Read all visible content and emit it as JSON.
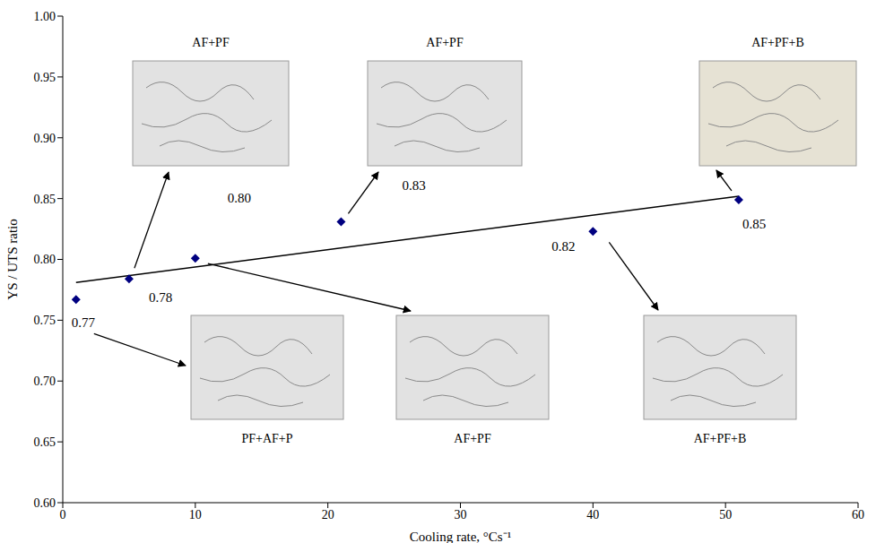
{
  "chart_data": {
    "type": "scatter",
    "x_label": "Cooling rate, °Cs⁻¹",
    "y_label": "YS / UTS ratio",
    "x": [
      1,
      5,
      10,
      21,
      40,
      51
    ],
    "values": [
      0.767,
      0.784,
      0.801,
      0.831,
      0.823,
      0.849
    ],
    "value_labels": [
      "0.77",
      "0.78",
      "0.80",
      "0.83",
      "0.82",
      "0.85"
    ],
    "data_labels": true,
    "phases": [
      "PF+AF+P",
      "AF+PF",
      "AF+PF",
      "AF+PF",
      "AF+PF+B",
      "AF+PF+B"
    ],
    "color": "#000080",
    "marker": "diamond",
    "trendline": {
      "x": [
        1,
        51
      ],
      "values": [
        0.781,
        0.852
      ],
      "color": "#000000",
      "line_style": "solid"
    },
    "xlim": [
      0,
      60
    ],
    "xticks": [
      0,
      10,
      20,
      30,
      40,
      50,
      60
    ],
    "ylim": [
      0.6,
      1.0
    ],
    "yticks": [
      {
        "value": 0.6,
        "label": "0.60"
      },
      0.65,
      {
        "value": 0.7,
        "label": "0.70"
      },
      0.75,
      {
        "value": 0.8,
        "label": "0.80"
      },
      0.85,
      {
        "value": 0.9,
        "label": "0.90"
      },
      0.95,
      {
        "value": 1.0,
        "label": "1.00"
      }
    ],
    "grid": false
  }
}
